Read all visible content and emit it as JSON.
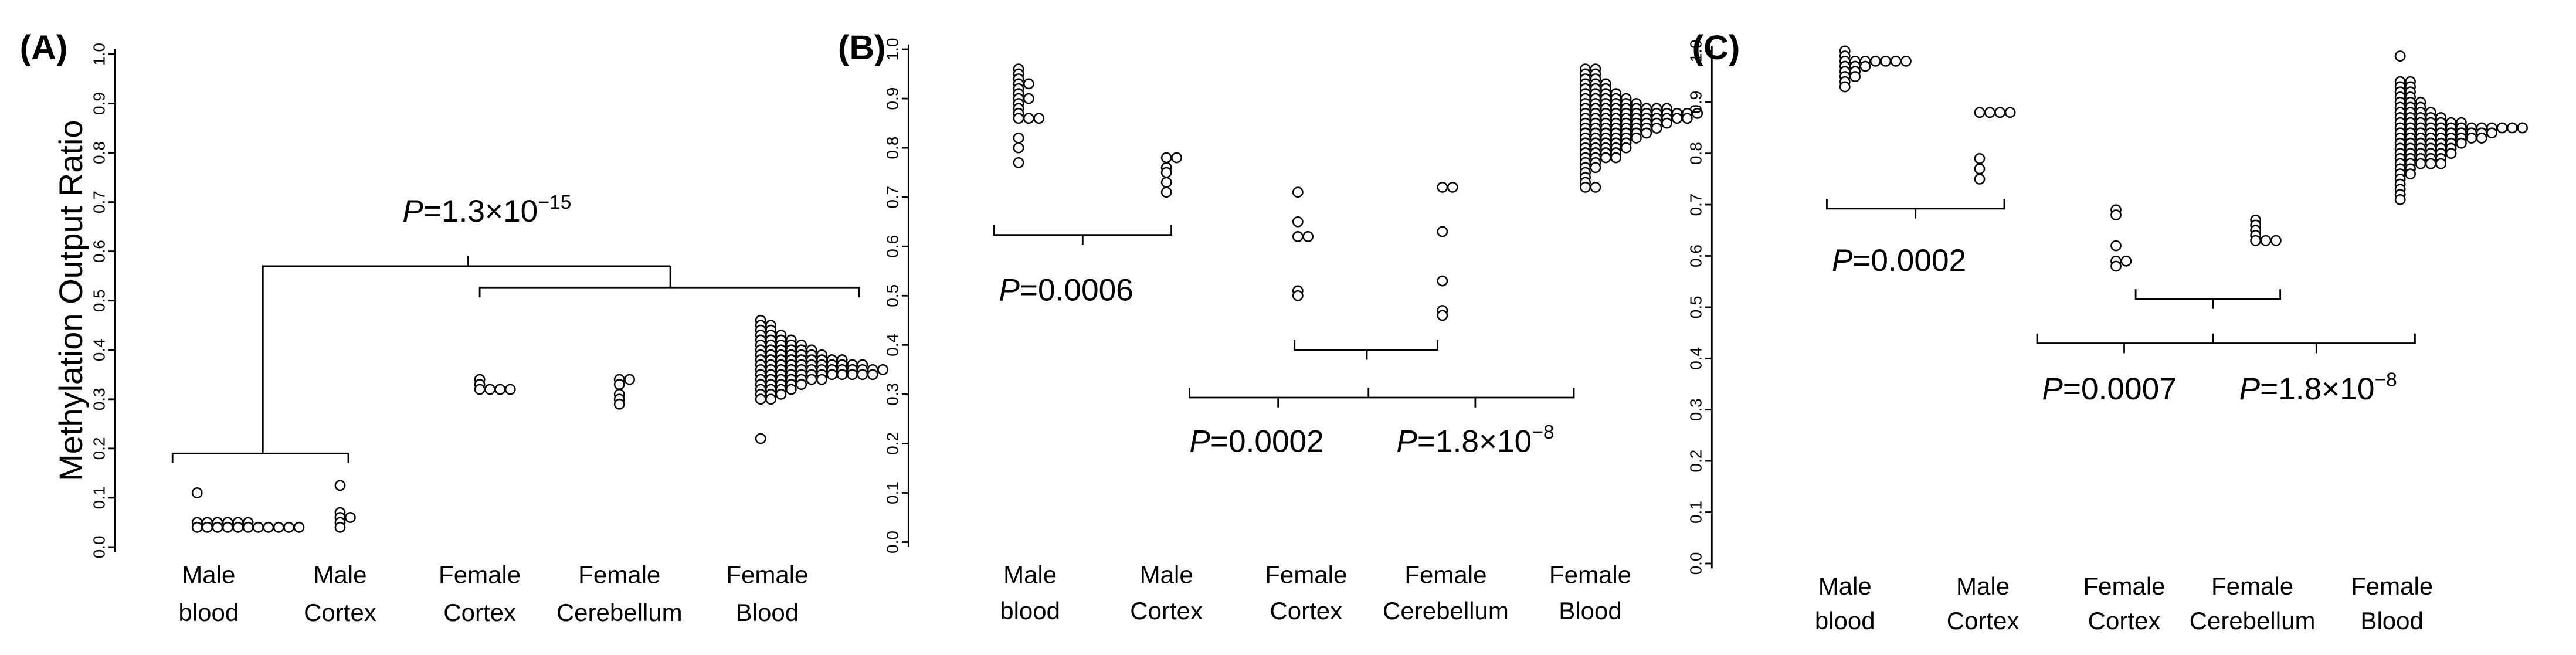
{
  "chart_data": [
    {
      "type": "dotstrip",
      "panel": "(A)",
      "ylabel": "Methylation Output  Ratio",
      "categories": [
        [
          "Male",
          "blood"
        ],
        [
          "Male",
          "Cortex"
        ],
        [
          "Female",
          "Cortex"
        ],
        [
          "Female",
          "Cerebellum"
        ],
        [
          "Female",
          "Blood"
        ]
      ],
      "values": [
        [
          0.11,
          0.05,
          0.05,
          0.05,
          0.05,
          0.05,
          0.05,
          0.04,
          0.04,
          0.04,
          0.04,
          0.04,
          0.04,
          0.04,
          0.04,
          0.04,
          0.04,
          0.04
        ],
        [
          0.125,
          0.07,
          0.06,
          0.06,
          0.05,
          0.04
        ],
        [
          0.34,
          0.33,
          0.32,
          0.32,
          0.32,
          0.32
        ],
        [
          0.34,
          0.34,
          0.33,
          0.31,
          0.3,
          0.29
        ],
        [
          0.46,
          0.45,
          0.45,
          0.44,
          0.44,
          0.43,
          0.43,
          0.43,
          0.42,
          0.42,
          0.42,
          0.42,
          0.41,
          0.41,
          0.41,
          0.41,
          0.41,
          0.4,
          0.4,
          0.4,
          0.4,
          0.4,
          0.4,
          0.39,
          0.39,
          0.39,
          0.39,
          0.39,
          0.39,
          0.39,
          0.38,
          0.38,
          0.38,
          0.38,
          0.38,
          0.38,
          0.38,
          0.38,
          0.38,
          0.37,
          0.37,
          0.37,
          0.37,
          0.37,
          0.37,
          0.37,
          0.37,
          0.37,
          0.37,
          0.37,
          0.36,
          0.36,
          0.36,
          0.36,
          0.36,
          0.36,
          0.36,
          0.36,
          0.36,
          0.36,
          0.36,
          0.36,
          0.36,
          0.35,
          0.35,
          0.35,
          0.35,
          0.35,
          0.35,
          0.35,
          0.35,
          0.35,
          0.35,
          0.35,
          0.35,
          0.34,
          0.34,
          0.34,
          0.34,
          0.34,
          0.34,
          0.34,
          0.33,
          0.33,
          0.33,
          0.33,
          0.33,
          0.32,
          0.32,
          0.32,
          0.32,
          0.31,
          0.31,
          0.31,
          0.3,
          0.3,
          0.22
        ]
      ],
      "ylim": [
        0,
        1
      ],
      "yticks": [
        {
          "value": 0,
          "label": "0.0"
        },
        {
          "value": 0.1,
          "label": "0.1"
        },
        {
          "value": 0.2,
          "label": "0.2"
        },
        {
          "value": 0.3,
          "label": "0.3"
        },
        {
          "value": 0.4,
          "label": "0.4"
        },
        {
          "value": 0.5,
          "label": "0.5"
        },
        {
          "value": 0.6,
          "label": "0.6"
        },
        {
          "value": 0.7,
          "label": "0.7"
        },
        {
          "value": 0.8,
          "label": "0.8"
        },
        {
          "value": 0.9,
          "label": "0.9"
        },
        {
          "value": 1,
          "label": "1.0"
        }
      ],
      "annotations": [
        {
          "italic": "P",
          "text": "=1.3×10",
          "sup": "−15"
        }
      ]
    },
    {
      "type": "dotstrip",
      "panel": "(B)",
      "categories": [
        [
          "Male",
          "blood"
        ],
        [
          "Male",
          "Cortex"
        ],
        [
          "Female",
          "Cortex"
        ],
        [
          "Female",
          "Cerebellum"
        ],
        [
          "Female",
          "Blood"
        ]
      ],
      "values": [
        [
          0.96,
          0.95,
          0.94,
          0.93,
          0.93,
          0.92,
          0.91,
          0.9,
          0.9,
          0.89,
          0.88,
          0.87,
          0.86,
          0.86,
          0.86,
          0.82,
          0.8,
          0.77
        ],
        [
          0.78,
          0.78,
          0.76,
          0.75,
          0.73,
          0.71
        ],
        [
          0.71,
          0.65,
          0.62,
          0.62,
          0.51,
          0.5
        ],
        [
          0.72,
          0.72,
          0.63,
          0.53,
          0.47,
          0.46
        ],
        [
          0.96,
          0.96,
          0.95,
          0.95,
          0.94,
          0.94,
          0.93,
          0.93,
          0.93,
          0.92,
          0.92,
          0.92,
          0.91,
          0.91,
          0.91,
          0.91,
          0.9,
          0.9,
          0.9,
          0.9,
          0.9,
          0.89,
          0.89,
          0.89,
          0.89,
          0.89,
          0.89,
          0.88,
          0.88,
          0.88,
          0.88,
          0.88,
          0.88,
          0.88,
          0.88,
          0.88,
          0.87,
          0.87,
          0.87,
          0.87,
          0.87,
          0.87,
          0.87,
          0.87,
          0.87,
          0.87,
          0.87,
          0.87,
          0.86,
          0.86,
          0.86,
          0.86,
          0.86,
          0.86,
          0.86,
          0.86,
          0.86,
          0.86,
          0.86,
          0.85,
          0.85,
          0.85,
          0.85,
          0.85,
          0.85,
          0.85,
          0.85,
          0.85,
          0.84,
          0.84,
          0.84,
          0.84,
          0.84,
          0.84,
          0.84,
          0.84,
          0.83,
          0.83,
          0.83,
          0.83,
          0.83,
          0.83,
          0.83,
          0.82,
          0.82,
          0.82,
          0.82,
          0.82,
          0.82,
          0.81,
          0.81,
          0.81,
          0.81,
          0.81,
          0.8,
          0.8,
          0.8,
          0.8,
          0.8,
          0.79,
          0.79,
          0.79,
          0.79,
          0.78,
          0.78,
          0.78,
          0.78,
          0.77,
          0.77,
          0.76,
          0.76,
          0.75,
          0.74,
          0.73,
          0.72,
          0.72
        ]
      ],
      "ylim": [
        0,
        1
      ],
      "yticks": [
        {
          "value": 0,
          "label": "0.0"
        },
        {
          "value": 0.1,
          "label": "0.1"
        },
        {
          "value": 0.2,
          "label": "0.2"
        },
        {
          "value": 0.3,
          "label": "0.3"
        },
        {
          "value": 0.4,
          "label": "0.4"
        },
        {
          "value": 0.5,
          "label": "0.5"
        },
        {
          "value": 0.6,
          "label": "0.6"
        },
        {
          "value": 0.7,
          "label": "0.7"
        },
        {
          "value": 0.8,
          "label": "0.8"
        },
        {
          "value": 0.9,
          "label": "0.9"
        },
        {
          "value": 1,
          "label": "1.0"
        }
      ],
      "annotations": [
        {
          "italic": "P",
          "text": "=0.0006"
        },
        {
          "italic": "P",
          "text": "=0.0002"
        },
        {
          "italic": "P",
          "text": "=1.8×10",
          "sup": "−8"
        }
      ]
    },
    {
      "type": "dotstrip",
      "panel": "(C)",
      "categories": [
        [
          "Male",
          "blood"
        ],
        [
          "Male",
          "Cortex"
        ],
        [
          "Female",
          "Cortex"
        ],
        [
          "Female",
          "Cerebellum"
        ],
        [
          "Female",
          "Blood"
        ]
      ],
      "values": [
        [
          1,
          0.99,
          0.98,
          0.98,
          0.98,
          0.98,
          0.98,
          0.98,
          0.98,
          0.97,
          0.97,
          0.97,
          0.96,
          0.96,
          0.95,
          0.95,
          0.94,
          0.93
        ],
        [
          0.88,
          0.88,
          0.88,
          0.88,
          0.79,
          0.77,
          0.75
        ],
        [
          0.69,
          0.68,
          0.62,
          0.59,
          0.59,
          0.58
        ],
        [
          0.67,
          0.66,
          0.65,
          0.64,
          0.63,
          0.63,
          0.63
        ],
        [
          0.99,
          0.94,
          0.94,
          0.93,
          0.93,
          0.92,
          0.92,
          0.91,
          0.91,
          0.9,
          0.9,
          0.9,
          0.89,
          0.89,
          0.89,
          0.88,
          0.88,
          0.88,
          0.88,
          0.87,
          0.87,
          0.87,
          0.87,
          0.87,
          0.86,
          0.86,
          0.86,
          0.86,
          0.86,
          0.86,
          0.86,
          0.85,
          0.85,
          0.85,
          0.85,
          0.85,
          0.85,
          0.85,
          0.85,
          0.85,
          0.85,
          0.85,
          0.85,
          0.85,
          0.84,
          0.84,
          0.84,
          0.84,
          0.84,
          0.84,
          0.84,
          0.84,
          0.84,
          0.84,
          0.83,
          0.83,
          0.83,
          0.83,
          0.83,
          0.83,
          0.83,
          0.83,
          0.83,
          0.82,
          0.82,
          0.82,
          0.82,
          0.82,
          0.82,
          0.82,
          0.81,
          0.81,
          0.81,
          0.81,
          0.81,
          0.81,
          0.8,
          0.8,
          0.8,
          0.8,
          0.8,
          0.8,
          0.79,
          0.79,
          0.79,
          0.79,
          0.79,
          0.78,
          0.78,
          0.78,
          0.78,
          0.78,
          0.77,
          0.77,
          0.76,
          0.76,
          0.75,
          0.74,
          0.73,
          0.72,
          0.71
        ]
      ],
      "ylim": [
        0,
        1
      ],
      "yticks": [
        {
          "value": 0,
          "label": "0.0"
        },
        {
          "value": 0.1,
          "label": "0.1"
        },
        {
          "value": 0.2,
          "label": "0.2"
        },
        {
          "value": 0.3,
          "label": "0.3"
        },
        {
          "value": 0.4,
          "label": "0.4"
        },
        {
          "value": 0.5,
          "label": "0.5"
        },
        {
          "value": 0.6,
          "label": "0.6"
        },
        {
          "value": 0.7,
          "label": "0.7"
        },
        {
          "value": 0.8,
          "label": "0.8"
        },
        {
          "value": 0.9,
          "label": "0.9"
        },
        {
          "value": 1,
          "label": "1.0"
        }
      ],
      "annotations": [
        {
          "italic": "P",
          "text": "=0.0002"
        },
        {
          "italic": "P",
          "text": "=0.0007"
        },
        {
          "italic": "P",
          "text": "=1.8×10",
          "sup": "−8"
        }
      ]
    }
  ]
}
